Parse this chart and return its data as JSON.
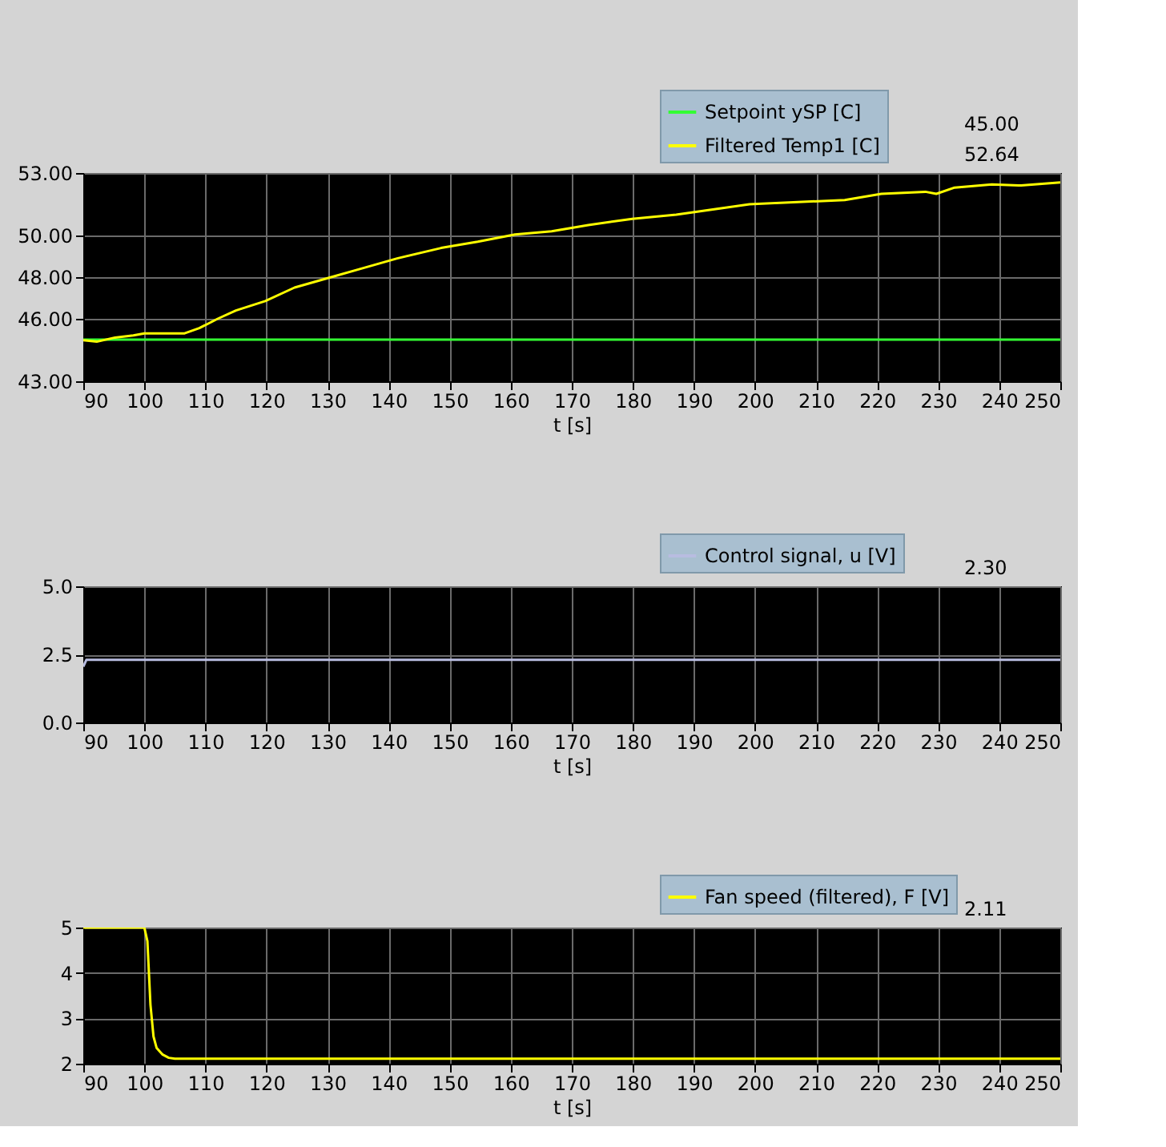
{
  "chart_data": [
    {
      "type": "line",
      "xlabel": "t [s]",
      "xlim": [
        90,
        250
      ],
      "xticks": [
        90,
        100,
        110,
        120,
        130,
        140,
        150,
        160,
        170,
        180,
        190,
        200,
        210,
        220,
        230,
        240,
        250
      ],
      "ylim": [
        43,
        53
      ],
      "yticks": [
        {
          "value": 43,
          "label": "43.00"
        },
        {
          "value": 46,
          "label": "46.00"
        },
        {
          "value": 48,
          "label": "48.00"
        },
        {
          "value": 50,
          "label": "50.00"
        },
        {
          "value": 53,
          "label": "53.00"
        }
      ],
      "grid": true,
      "legend": "top right",
      "marker": "none",
      "line_style": "solid",
      "annotations": [
        "45.00",
        "52.64"
      ],
      "series": [
        {
          "name": "Setpoint ySP [C]",
          "color": "#33ff33",
          "x": [
            90,
            250
          ],
          "values": [
            45,
            45
          ]
        },
        {
          "name": "Filtered Temp1 [C]",
          "color": "#ffff00",
          "x": [
            90,
            92.2,
            95.2,
            98.2,
            100,
            106.6,
            109,
            112,
            115,
            119.8,
            124.6,
            130.6,
            135.4,
            141.4,
            148.6,
            154.6,
            160.7,
            166.7,
            172.7,
            179.9,
            187.1,
            193.1,
            199.1,
            206.3,
            214.7,
            220.7,
            227.9,
            229.7,
            232.7,
            238.8,
            243.6,
            250
          ],
          "values": [
            44.97,
            44.9,
            45.1,
            45.2,
            45.3,
            45.3,
            45.55,
            46.0,
            46.4,
            46.85,
            47.5,
            48.0,
            48.4,
            48.9,
            49.4,
            49.7,
            50.05,
            50.2,
            50.5,
            50.8,
            51.0,
            51.25,
            51.5,
            51.6,
            51.7,
            52.0,
            52.1,
            52.0,
            52.3,
            52.45,
            52.4,
            52.55
          ]
        }
      ]
    },
    {
      "type": "line",
      "xlabel": "t [s]",
      "xlim": [
        90,
        250
      ],
      "xticks": [
        90,
        100,
        110,
        120,
        130,
        140,
        150,
        160,
        170,
        180,
        190,
        200,
        210,
        220,
        230,
        240,
        250
      ],
      "ylim": [
        0,
        5
      ],
      "yticks": [
        {
          "value": 0,
          "label": "0.0"
        },
        {
          "value": 2.5,
          "label": "2.5"
        },
        {
          "value": 5,
          "label": "5.0"
        }
      ],
      "grid": true,
      "legend": "top right",
      "marker": "none",
      "line_style": "solid",
      "annotations": [
        "2.30"
      ],
      "series": [
        {
          "name": "Control signal, u [V]",
          "color": "#b8bce0",
          "x": [
            90,
            90.5,
            250
          ],
          "values": [
            2.05,
            2.3,
            2.3
          ]
        }
      ]
    },
    {
      "type": "line",
      "xlabel": "t [s]",
      "xlim": [
        90,
        250
      ],
      "xticks": [
        90,
        100,
        110,
        120,
        130,
        140,
        150,
        160,
        170,
        180,
        190,
        200,
        210,
        220,
        230,
        240,
        250
      ],
      "ylim": [
        2,
        5
      ],
      "yticks": [
        2,
        3,
        4,
        5
      ],
      "grid": true,
      "legend": "top right",
      "marker": "none",
      "line_style": "solid",
      "annotations": [
        "2.11"
      ],
      "series": [
        {
          "name": "Fan speed (filtered), F [V]",
          "color": "#ffff00",
          "x": [
            90,
            100,
            100.5,
            101,
            101.5,
            102,
            103,
            104,
            105,
            250
          ],
          "values": [
            5,
            5,
            4.7,
            3.3,
            2.6,
            2.35,
            2.2,
            2.13,
            2.11,
            2.11
          ]
        }
      ]
    }
  ]
}
